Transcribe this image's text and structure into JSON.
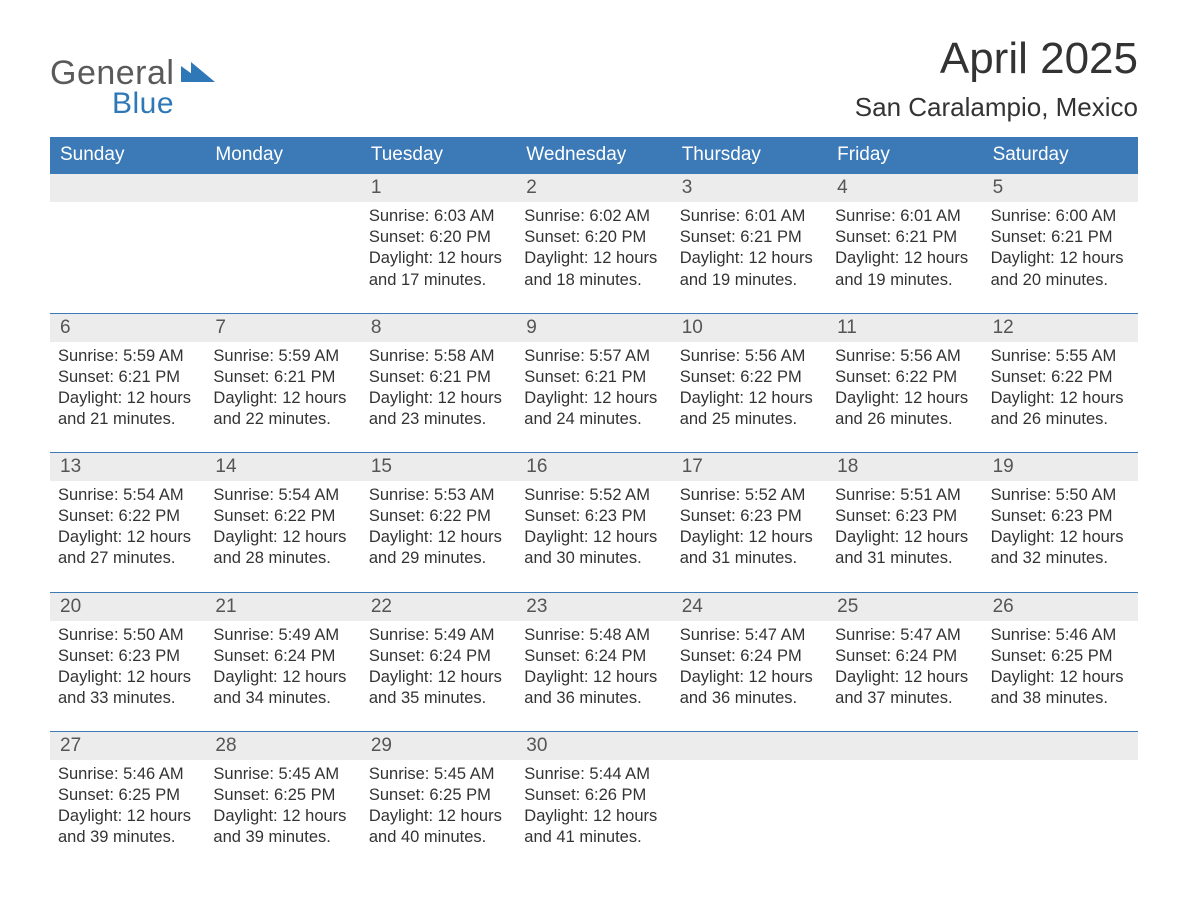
{
  "brand": {
    "word1": "General",
    "word2": "Blue"
  },
  "title": "April 2025",
  "location": "San Caralampio, Mexico",
  "colors": {
    "header_bg": "#3b79b7",
    "header_text": "#ffffff",
    "daynum_bg": "#ececec",
    "daynum_text": "#555555",
    "body_text": "#333333",
    "week_border": "#3b79b7",
    "brand_gray": "#5a5a5a",
    "brand_blue": "#2f78b7",
    "page_bg": "#ffffff"
  },
  "days_of_week": [
    "Sunday",
    "Monday",
    "Tuesday",
    "Wednesday",
    "Thursday",
    "Friday",
    "Saturday"
  ],
  "weeks": [
    {
      "nums": [
        "",
        "",
        "1",
        "2",
        "3",
        "4",
        "5"
      ],
      "cells": [
        {
          "sunrise": "",
          "sunset": "",
          "daylight1": "",
          "daylight2": ""
        },
        {
          "sunrise": "",
          "sunset": "",
          "daylight1": "",
          "daylight2": ""
        },
        {
          "sunrise": "Sunrise: 6:03 AM",
          "sunset": "Sunset: 6:20 PM",
          "daylight1": "Daylight: 12 hours",
          "daylight2": "and 17 minutes."
        },
        {
          "sunrise": "Sunrise: 6:02 AM",
          "sunset": "Sunset: 6:20 PM",
          "daylight1": "Daylight: 12 hours",
          "daylight2": "and 18 minutes."
        },
        {
          "sunrise": "Sunrise: 6:01 AM",
          "sunset": "Sunset: 6:21 PM",
          "daylight1": "Daylight: 12 hours",
          "daylight2": "and 19 minutes."
        },
        {
          "sunrise": "Sunrise: 6:01 AM",
          "sunset": "Sunset: 6:21 PM",
          "daylight1": "Daylight: 12 hours",
          "daylight2": "and 19 minutes."
        },
        {
          "sunrise": "Sunrise: 6:00 AM",
          "sunset": "Sunset: 6:21 PM",
          "daylight1": "Daylight: 12 hours",
          "daylight2": "and 20 minutes."
        }
      ]
    },
    {
      "nums": [
        "6",
        "7",
        "8",
        "9",
        "10",
        "11",
        "12"
      ],
      "cells": [
        {
          "sunrise": "Sunrise: 5:59 AM",
          "sunset": "Sunset: 6:21 PM",
          "daylight1": "Daylight: 12 hours",
          "daylight2": "and 21 minutes."
        },
        {
          "sunrise": "Sunrise: 5:59 AM",
          "sunset": "Sunset: 6:21 PM",
          "daylight1": "Daylight: 12 hours",
          "daylight2": "and 22 minutes."
        },
        {
          "sunrise": "Sunrise: 5:58 AM",
          "sunset": "Sunset: 6:21 PM",
          "daylight1": "Daylight: 12 hours",
          "daylight2": "and 23 minutes."
        },
        {
          "sunrise": "Sunrise: 5:57 AM",
          "sunset": "Sunset: 6:21 PM",
          "daylight1": "Daylight: 12 hours",
          "daylight2": "and 24 minutes."
        },
        {
          "sunrise": "Sunrise: 5:56 AM",
          "sunset": "Sunset: 6:22 PM",
          "daylight1": "Daylight: 12 hours",
          "daylight2": "and 25 minutes."
        },
        {
          "sunrise": "Sunrise: 5:56 AM",
          "sunset": "Sunset: 6:22 PM",
          "daylight1": "Daylight: 12 hours",
          "daylight2": "and 26 minutes."
        },
        {
          "sunrise": "Sunrise: 5:55 AM",
          "sunset": "Sunset: 6:22 PM",
          "daylight1": "Daylight: 12 hours",
          "daylight2": "and 26 minutes."
        }
      ]
    },
    {
      "nums": [
        "13",
        "14",
        "15",
        "16",
        "17",
        "18",
        "19"
      ],
      "cells": [
        {
          "sunrise": "Sunrise: 5:54 AM",
          "sunset": "Sunset: 6:22 PM",
          "daylight1": "Daylight: 12 hours",
          "daylight2": "and 27 minutes."
        },
        {
          "sunrise": "Sunrise: 5:54 AM",
          "sunset": "Sunset: 6:22 PM",
          "daylight1": "Daylight: 12 hours",
          "daylight2": "and 28 minutes."
        },
        {
          "sunrise": "Sunrise: 5:53 AM",
          "sunset": "Sunset: 6:22 PM",
          "daylight1": "Daylight: 12 hours",
          "daylight2": "and 29 minutes."
        },
        {
          "sunrise": "Sunrise: 5:52 AM",
          "sunset": "Sunset: 6:23 PM",
          "daylight1": "Daylight: 12 hours",
          "daylight2": "and 30 minutes."
        },
        {
          "sunrise": "Sunrise: 5:52 AM",
          "sunset": "Sunset: 6:23 PM",
          "daylight1": "Daylight: 12 hours",
          "daylight2": "and 31 minutes."
        },
        {
          "sunrise": "Sunrise: 5:51 AM",
          "sunset": "Sunset: 6:23 PM",
          "daylight1": "Daylight: 12 hours",
          "daylight2": "and 31 minutes."
        },
        {
          "sunrise": "Sunrise: 5:50 AM",
          "sunset": "Sunset: 6:23 PM",
          "daylight1": "Daylight: 12 hours",
          "daylight2": "and 32 minutes."
        }
      ]
    },
    {
      "nums": [
        "20",
        "21",
        "22",
        "23",
        "24",
        "25",
        "26"
      ],
      "cells": [
        {
          "sunrise": "Sunrise: 5:50 AM",
          "sunset": "Sunset: 6:23 PM",
          "daylight1": "Daylight: 12 hours",
          "daylight2": "and 33 minutes."
        },
        {
          "sunrise": "Sunrise: 5:49 AM",
          "sunset": "Sunset: 6:24 PM",
          "daylight1": "Daylight: 12 hours",
          "daylight2": "and 34 minutes."
        },
        {
          "sunrise": "Sunrise: 5:49 AM",
          "sunset": "Sunset: 6:24 PM",
          "daylight1": "Daylight: 12 hours",
          "daylight2": "and 35 minutes."
        },
        {
          "sunrise": "Sunrise: 5:48 AM",
          "sunset": "Sunset: 6:24 PM",
          "daylight1": "Daylight: 12 hours",
          "daylight2": "and 36 minutes."
        },
        {
          "sunrise": "Sunrise: 5:47 AM",
          "sunset": "Sunset: 6:24 PM",
          "daylight1": "Daylight: 12 hours",
          "daylight2": "and 36 minutes."
        },
        {
          "sunrise": "Sunrise: 5:47 AM",
          "sunset": "Sunset: 6:24 PM",
          "daylight1": "Daylight: 12 hours",
          "daylight2": "and 37 minutes."
        },
        {
          "sunrise": "Sunrise: 5:46 AM",
          "sunset": "Sunset: 6:25 PM",
          "daylight1": "Daylight: 12 hours",
          "daylight2": "and 38 minutes."
        }
      ]
    },
    {
      "nums": [
        "27",
        "28",
        "29",
        "30",
        "",
        "",
        ""
      ],
      "cells": [
        {
          "sunrise": "Sunrise: 5:46 AM",
          "sunset": "Sunset: 6:25 PM",
          "daylight1": "Daylight: 12 hours",
          "daylight2": "and 39 minutes."
        },
        {
          "sunrise": "Sunrise: 5:45 AM",
          "sunset": "Sunset: 6:25 PM",
          "daylight1": "Daylight: 12 hours",
          "daylight2": "and 39 minutes."
        },
        {
          "sunrise": "Sunrise: 5:45 AM",
          "sunset": "Sunset: 6:25 PM",
          "daylight1": "Daylight: 12 hours",
          "daylight2": "and 40 minutes."
        },
        {
          "sunrise": "Sunrise: 5:44 AM",
          "sunset": "Sunset: 6:26 PM",
          "daylight1": "Daylight: 12 hours",
          "daylight2": "and 41 minutes."
        },
        {
          "sunrise": "",
          "sunset": "",
          "daylight1": "",
          "daylight2": ""
        },
        {
          "sunrise": "",
          "sunset": "",
          "daylight1": "",
          "daylight2": ""
        },
        {
          "sunrise": "",
          "sunset": "",
          "daylight1": "",
          "daylight2": ""
        }
      ]
    }
  ]
}
